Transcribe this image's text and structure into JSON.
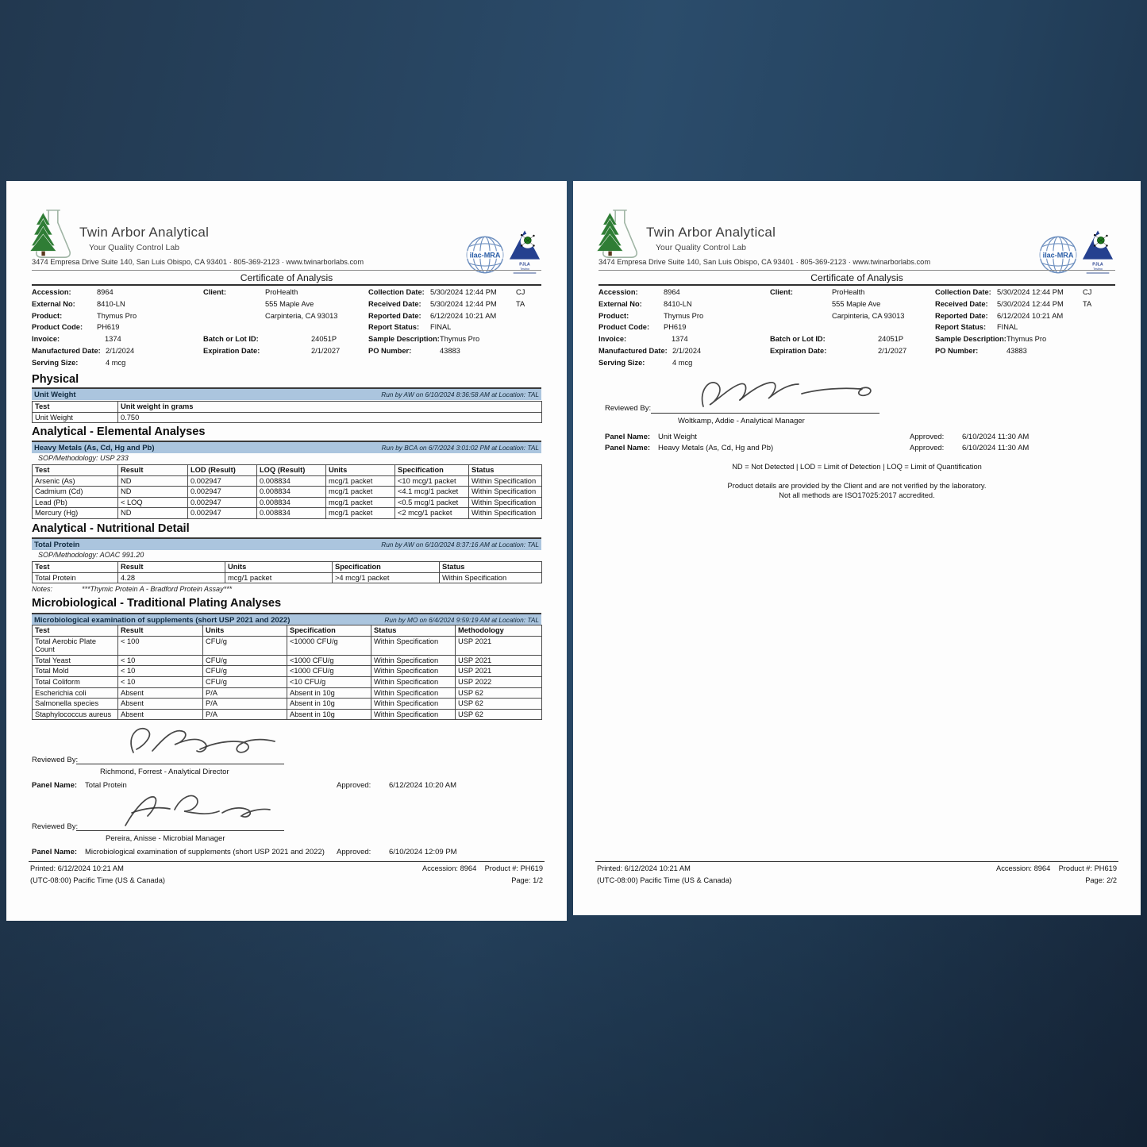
{
  "badges": {
    "ilac_label": "ilac-MRA",
    "pjla_label": "PJLA",
    "pjla_sub": "Testing"
  },
  "header": {
    "company": "Twin Arbor Analytical",
    "tagline": "Your Quality Control Lab",
    "address": "3474 Empresa Drive Suite 140, San Luis Obispo, CA 93401  ·  805-369-2123  ·  www.twinarborlabs.com",
    "cert_title": "Certificate of Analysis",
    "grid_rows": [
      [
        "Accession:",
        "8964",
        "Client:",
        "ProHealth",
        "Collection Date:",
        "5/30/2024 12:44 PM",
        "CJ"
      ],
      [
        "External No:",
        "8410-LN",
        "",
        "555 Maple Ave",
        "Received Date:",
        "5/30/2024 12:44 PM",
        "TA"
      ],
      [
        "Product:",
        "Thymus Pro",
        "",
        "Carpinteria, CA 93013",
        "Reported Date:",
        "6/12/2024 10:21 AM",
        ""
      ],
      [
        "Product Code:",
        "PH619",
        "",
        "",
        "Report Status:",
        "FINAL",
        ""
      ],
      [
        "Invoice:",
        "1374",
        "Batch or Lot ID:",
        "24051P",
        "Sample Description:",
        "Thymus Pro",
        ""
      ],
      [
        "Manufactured Date:",
        "2/1/2024",
        "Expiration Date:",
        "2/1/2027",
        "PO Number:",
        "43883",
        ""
      ],
      [
        "Serving Size:",
        "4 mcg",
        "",
        "",
        "",
        "",
        ""
      ]
    ]
  },
  "page1": {
    "physical": {
      "title": "Physical",
      "band": "Unit Weight",
      "run_by": "Run by AW on 6/10/2024 8:36:58 AM at Location: TAL",
      "headers": [
        "Test",
        "Unit weight in grams"
      ],
      "rows": [
        [
          "Unit Weight",
          "0.750"
        ]
      ]
    },
    "elemental": {
      "title": "Analytical - Elemental Analyses",
      "band": "Heavy Metals (As, Cd, Hg and Pb)",
      "run_by": "Run by BCA on 6/7/2024 3:01:02 PM at Location: TAL",
      "sop": "SOP/Methodology: USP 233",
      "headers": [
        "Test",
        "Result",
        "LOD (Result)",
        "LOQ (Result)",
        "Units",
        "Specification",
        "Status"
      ],
      "rows": [
        [
          "Arsenic (As)",
          "ND",
          "0.002947",
          "0.008834",
          "mcg/1 packet",
          "<10 mcg/1 packet",
          "Within Specification"
        ],
        [
          "Cadmium (Cd)",
          "ND",
          "0.002947",
          "0.008834",
          "mcg/1 packet",
          "<4.1 mcg/1 packet",
          "Within Specification"
        ],
        [
          "Lead (Pb)",
          "< LOQ",
          "0.002947",
          "0.008834",
          "mcg/1 packet",
          "<0.5 mcg/1 packet",
          "Within Specification"
        ],
        [
          "Mercury (Hg)",
          "ND",
          "0.002947",
          "0.008834",
          "mcg/1 packet",
          "<2 mcg/1 packet",
          "Within Specification"
        ]
      ]
    },
    "nutritional": {
      "title": "Analytical - Nutritional Detail",
      "band": "Total Protein",
      "run_by": "Run by AW on 6/10/2024 8:37:16 AM at Location: TAL",
      "sop": "SOP/Methodology: AOAC 991.20",
      "headers": [
        "Test",
        "Result",
        "Units",
        "Specification",
        "Status"
      ],
      "rows": [
        [
          "Total Protein",
          "4.28",
          "mcg/1 packet",
          ">4 mcg/1 packet",
          "Within Specification"
        ]
      ],
      "notes_label": "Notes:",
      "notes": "***Thymic Protein A - Bradford Protein Assay***"
    },
    "micro": {
      "title": "Microbiological - Traditional Plating Analyses",
      "band": "Microbiological examination of supplements (short USP 2021 and 2022)",
      "run_by": "Run by MO on 6/4/2024 9:59:19 AM at Location: TAL",
      "headers": [
        "Test",
        "Result",
        "Units",
        "Specification",
        "Status",
        "Methodology"
      ],
      "rows": [
        [
          "Total Aerobic Plate Count",
          "< 100",
          "CFU/g",
          "<10000 CFU/g",
          "Within Specification",
          "USP 2021"
        ],
        [
          "Total Yeast",
          "< 10",
          "CFU/g",
          "<1000 CFU/g",
          "Within Specification",
          "USP 2021"
        ],
        [
          "Total Mold",
          "< 10",
          "CFU/g",
          "<1000 CFU/g",
          "Within Specification",
          "USP 2021"
        ],
        [
          "Total Coliform",
          "< 10",
          "CFU/g",
          "<10 CFU/g",
          "Within Specification",
          "USP 2022"
        ],
        [
          "Escherichia coli",
          "Absent",
          "P/A",
          "Absent in 10g",
          "Within Specification",
          "USP 62"
        ],
        [
          "Salmonella species",
          "Absent",
          "P/A",
          "Absent in 10g",
          "Within Specification",
          "USP 62"
        ],
        [
          "Staphylococcus aureus",
          "Absent",
          "P/A",
          "Absent in 10g",
          "Within Specification",
          "USP 62"
        ]
      ]
    },
    "signatures": [
      {
        "reviewed_label": "Reviewed By:",
        "name_role": "Richmond, Forrest   -   Analytical Director",
        "panel_label": "Panel Name:",
        "panel": "Total Protein",
        "approved_label": "Approved:",
        "approved": "6/12/2024 10:20 AM"
      },
      {
        "reviewed_label": "Reviewed By:",
        "name_role": "Pereira, Anisse   -   Microbial Manager",
        "panel_label": "Panel Name:",
        "panel": "Microbiological examination of supplements (short USP 2021 and 2022)",
        "approved_label": "Approved:",
        "approved": "6/10/2024 12:09 PM"
      }
    ],
    "footer": {
      "printed": "Printed: 6/12/2024 10:21 AM",
      "tz": "(UTC-08:00) Pacific Time (US & Canada)",
      "accession": "Accession: 8964",
      "product": "Product #: PH619",
      "page": "Page: 1/2"
    }
  },
  "page2": {
    "signature": {
      "reviewed_label": "Reviewed By:",
      "name_role": "Woltkamp, Addie   -   Analytical Manager"
    },
    "panels": [
      {
        "label": "Panel Name:",
        "name": "Unit Weight",
        "approved_label": "Approved:",
        "approved": "6/10/2024 11:30 AM"
      },
      {
        "label": "Panel Name:",
        "name": "Heavy Metals (As, Cd, Hg and Pb)",
        "approved_label": "Approved:",
        "approved": "6/10/2024 11:30 AM"
      }
    ],
    "legend": "ND = Not Detected    |    LOD = Limit of Detection    |    LOQ = Limit of Quantification",
    "disclaimer1": "Product details are provided by the Client and are not verified by the laboratory.",
    "disclaimer2": "Not all methods are ISO17025:2017 accredited.",
    "footer": {
      "printed": "Printed: 6/12/2024 10:21 AM",
      "tz": "(UTC-08:00) Pacific Time (US & Canada)",
      "accession": "Accession: 8964",
      "product": "Product #: PH619",
      "page": "Page: 2/2"
    }
  }
}
